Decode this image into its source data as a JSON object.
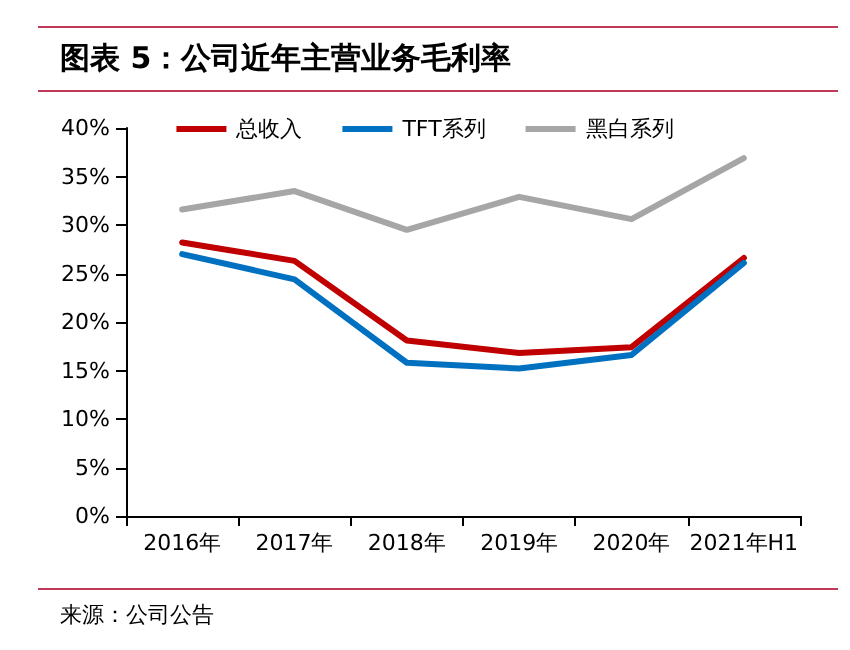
{
  "chart_data": {
    "type": "line",
    "title": "图表 5：公司近年主营业务毛利率",
    "categories": [
      "2016年",
      "2017年",
      "2018年",
      "2019年",
      "2020年",
      "2021年H1"
    ],
    "series": [
      {
        "name": "总收入",
        "color": "#c00000",
        "values": [
          28.2,
          26.3,
          18.1,
          16.8,
          17.4,
          26.6
        ]
      },
      {
        "name": "TFT系列",
        "color": "#0070c0",
        "values": [
          27.0,
          24.4,
          15.8,
          15.2,
          16.6,
          26.1
        ]
      },
      {
        "name": "黑白系列",
        "color": "#a6a6a6",
        "values": [
          31.6,
          33.5,
          29.5,
          32.9,
          30.6,
          36.9
        ]
      }
    ],
    "ylim": [
      0,
      40
    ],
    "yticks": [
      {
        "value": 0,
        "label": "0%"
      },
      {
        "value": 5,
        "label": "5%"
      },
      {
        "value": 10,
        "label": "10%"
      },
      {
        "value": 15,
        "label": "15%"
      },
      {
        "value": 20,
        "label": "20%"
      },
      {
        "value": 25,
        "label": "25%"
      },
      {
        "value": 30,
        "label": "30%"
      },
      {
        "value": 35,
        "label": "35%"
      },
      {
        "value": 40,
        "label": "40%"
      }
    ],
    "grid": false,
    "legend": "top",
    "marker": "none",
    "line_style": "solid",
    "annotations": [
      "来源：公司公告"
    ]
  }
}
